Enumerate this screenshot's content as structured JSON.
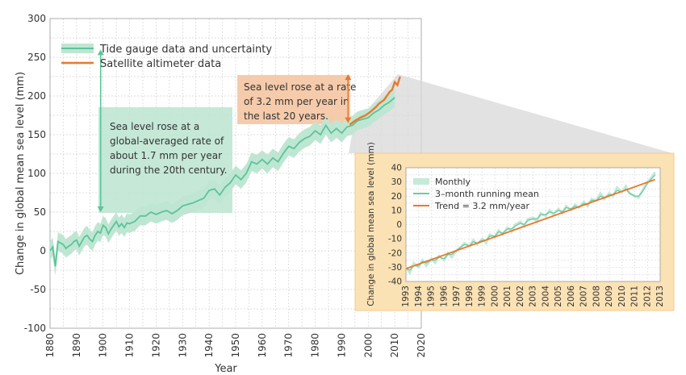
{
  "chart_data": [
    {
      "type": "line",
      "xlabel": "Year",
      "ylabel": "Change in global mean sea level (mm)",
      "xlim": [
        1880,
        2020
      ],
      "ylim": [
        -100,
        300
      ],
      "x_ticks": [
        "1880",
        "1890",
        "1900",
        "1910",
        "1920",
        "1930",
        "1940",
        "1950",
        "1960",
        "1970",
        "1980",
        "1990",
        "2000",
        "2010",
        "2020"
      ],
      "y_ticks": [
        "-100",
        "-50",
        "0",
        "50",
        "100",
        "150",
        "200",
        "250",
        "300"
      ],
      "grid": true,
      "legend_position": "top-left",
      "legend": [
        "Tide gauge data and uncertainty",
        "Satellite altimeter data"
      ],
      "series": [
        {
          "name": "Tide gauge data and uncertainty",
          "color": "#5cc49a",
          "band_color": "#bfe6d3",
          "uncertainty": 12,
          "x": [
            1880,
            1881,
            1882,
            1883,
            1884,
            1885,
            1886,
            1887,
            1888,
            1889,
            1890,
            1891,
            1892,
            1893,
            1894,
            1895,
            1896,
            1897,
            1898,
            1899,
            1900,
            1901,
            1902,
            1903,
            1904,
            1905,
            1906,
            1907,
            1908,
            1909,
            1910,
            1912,
            1914,
            1916,
            1918,
            1920,
            1922,
            1924,
            1926,
            1928,
            1930,
            1932,
            1934,
            1936,
            1938,
            1940,
            1942,
            1944,
            1946,
            1948,
            1950,
            1952,
            1954,
            1956,
            1958,
            1960,
            1962,
            1964,
            1966,
            1968,
            1970,
            1972,
            1974,
            1976,
            1978,
            1980,
            1982,
            1984,
            1986,
            1988,
            1990,
            1992,
            1994,
            1996,
            1998,
            2000,
            2002,
            2004,
            2006,
            2008,
            2010
          ],
          "values": [
            0,
            5,
            -20,
            12,
            10,
            8,
            3,
            6,
            8,
            12,
            14,
            6,
            12,
            18,
            20,
            15,
            12,
            20,
            25,
            23,
            33,
            30,
            22,
            28,
            33,
            38,
            31,
            35,
            30,
            36,
            35,
            38,
            45,
            45,
            50,
            47,
            50,
            52,
            48,
            52,
            58,
            60,
            62,
            65,
            68,
            78,
            80,
            72,
            82,
            88,
            98,
            92,
            100,
            115,
            112,
            118,
            112,
            120,
            115,
            126,
            135,
            132,
            140,
            145,
            148,
            155,
            150,
            162,
            152,
            158,
            152,
            160,
            162,
            168,
            170,
            172,
            178,
            182,
            188,
            192,
            198
          ]
        },
        {
          "name": "Satellite altimeter data",
          "color": "#e8792d",
          "x": [
            1993,
            1995,
            1997,
            1999,
            2001,
            2003,
            2004,
            2006,
            2008,
            2009,
            2010,
            2011,
            2012
          ],
          "values": [
            163,
            168,
            172,
            175,
            180,
            186,
            190,
            195,
            205,
            208,
            218,
            214,
            225
          ]
        }
      ],
      "annotations": [
        {
          "text": [
            "Sea level rose at a",
            "global-averaged rate of",
            "about 1.7 mm per year",
            "during the 20th century."
          ],
          "arrow_from": 260,
          "arrow_to": 50,
          "arrow_year": 1900
        },
        {
          "text": [
            "Sea level rose at a rate",
            "of 3.2 mm per year in",
            "the last 20 years."
          ],
          "arrow_from": 228,
          "arrow_to": 165,
          "arrow_year": 1993
        }
      ]
    },
    {
      "type": "line",
      "xlabel": "",
      "ylabel": "Change in global mean sea level (mm)",
      "xlim": [
        1993,
        2013
      ],
      "ylim": [
        -40,
        40
      ],
      "x_ticks": [
        "1993",
        "1994",
        "1995",
        "1996",
        "1997",
        "1998",
        "1999",
        "2000",
        "2001",
        "2002",
        "2003",
        "2004",
        "2005",
        "2006",
        "2007",
        "2008",
        "2009",
        "2010",
        "2011",
        "2012",
        "2013"
      ],
      "y_ticks": [
        "40",
        "30",
        "20",
        "10",
        "0",
        "-10",
        "-20",
        "-30",
        "-40"
      ],
      "grid": true,
      "legend_position": "top-left",
      "legend": [
        "Monthly",
        "3–month running mean",
        "Trend = 3.2 mm/year"
      ],
      "series": [
        {
          "name": "Monthly",
          "color": "#c6ead8",
          "x": [
            1993,
            1993.3,
            1993.6,
            1994,
            1994.3,
            1994.6,
            1995,
            1995.3,
            1995.6,
            1996,
            1996.3,
            1996.6,
            1997,
            1997.3,
            1997.6,
            1998,
            1998.3,
            1998.6,
            1999,
            1999.3,
            1999.6,
            2000,
            2000.3,
            2000.6,
            2001,
            2001.3,
            2001.6,
            2002,
            2002.3,
            2002.6,
            2003,
            2003.3,
            2003.6,
            2004,
            2004.3,
            2004.6,
            2005,
            2005.3,
            2005.6,
            2006,
            2006.3,
            2006.6,
            2007,
            2007.3,
            2007.6,
            2008,
            2008.3,
            2008.6,
            2009,
            2009.3,
            2009.6,
            2010,
            2010.3,
            2010.6,
            2011,
            2011.3,
            2011.6,
            2012,
            2012.3,
            2012.6
          ],
          "values": [
            -30,
            -34,
            -27,
            -30,
            -25,
            -29,
            -24,
            -27,
            -22,
            -25,
            -20,
            -23,
            -18,
            -16,
            -13,
            -15,
            -11,
            -14,
            -10,
            -13,
            -7,
            -9,
            -4,
            -7,
            -2,
            -5,
            0,
            2,
            -1,
            4,
            5,
            2,
            8,
            6,
            10,
            7,
            11,
            8,
            13,
            10,
            14,
            12,
            16,
            13,
            18,
            17,
            22,
            18,
            22,
            20,
            26,
            23,
            27,
            22,
            20,
            19,
            24,
            30,
            33,
            37
          ]
        },
        {
          "name": "3–month running mean",
          "color": "#6ccaa4",
          "x": [
            1993,
            1993.3,
            1993.6,
            1994,
            1994.3,
            1994.6,
            1995,
            1995.3,
            1995.6,
            1996,
            1996.3,
            1996.6,
            1997,
            1997.3,
            1997.6,
            1998,
            1998.3,
            1998.6,
            1999,
            1999.3,
            1999.6,
            2000,
            2000.3,
            2000.6,
            2001,
            2001.3,
            2001.6,
            2002,
            2002.3,
            2002.6,
            2003,
            2003.3,
            2003.6,
            2004,
            2004.3,
            2004.6,
            2005,
            2005.3,
            2005.6,
            2006,
            2006.3,
            2006.6,
            2007,
            2007.3,
            2007.6,
            2008,
            2008.3,
            2008.6,
            2009,
            2009.3,
            2009.6,
            2010,
            2010.3,
            2010.6,
            2011,
            2011.3,
            2011.6,
            2012,
            2012.3,
            2012.6
          ],
          "values": [
            -31,
            -32,
            -29,
            -29,
            -26,
            -27,
            -25,
            -25,
            -23,
            -24,
            -21,
            -21,
            -18,
            -16,
            -14,
            -15,
            -12,
            -13,
            -11,
            -11,
            -8,
            -8,
            -5,
            -6,
            -3,
            -3,
            -1,
            1,
            0,
            3,
            4,
            4,
            7,
            7,
            9,
            8,
            10,
            9,
            12,
            11,
            13,
            12,
            15,
            14,
            17,
            17,
            20,
            19,
            21,
            21,
            24,
            23,
            25,
            22,
            20,
            20,
            23,
            29,
            32,
            35
          ]
        },
        {
          "name": "Trend = 3.2 mm/year",
          "color": "#e8792d",
          "x": [
            1993,
            2012.6
          ],
          "values": [
            -31,
            31.7
          ]
        }
      ]
    }
  ]
}
